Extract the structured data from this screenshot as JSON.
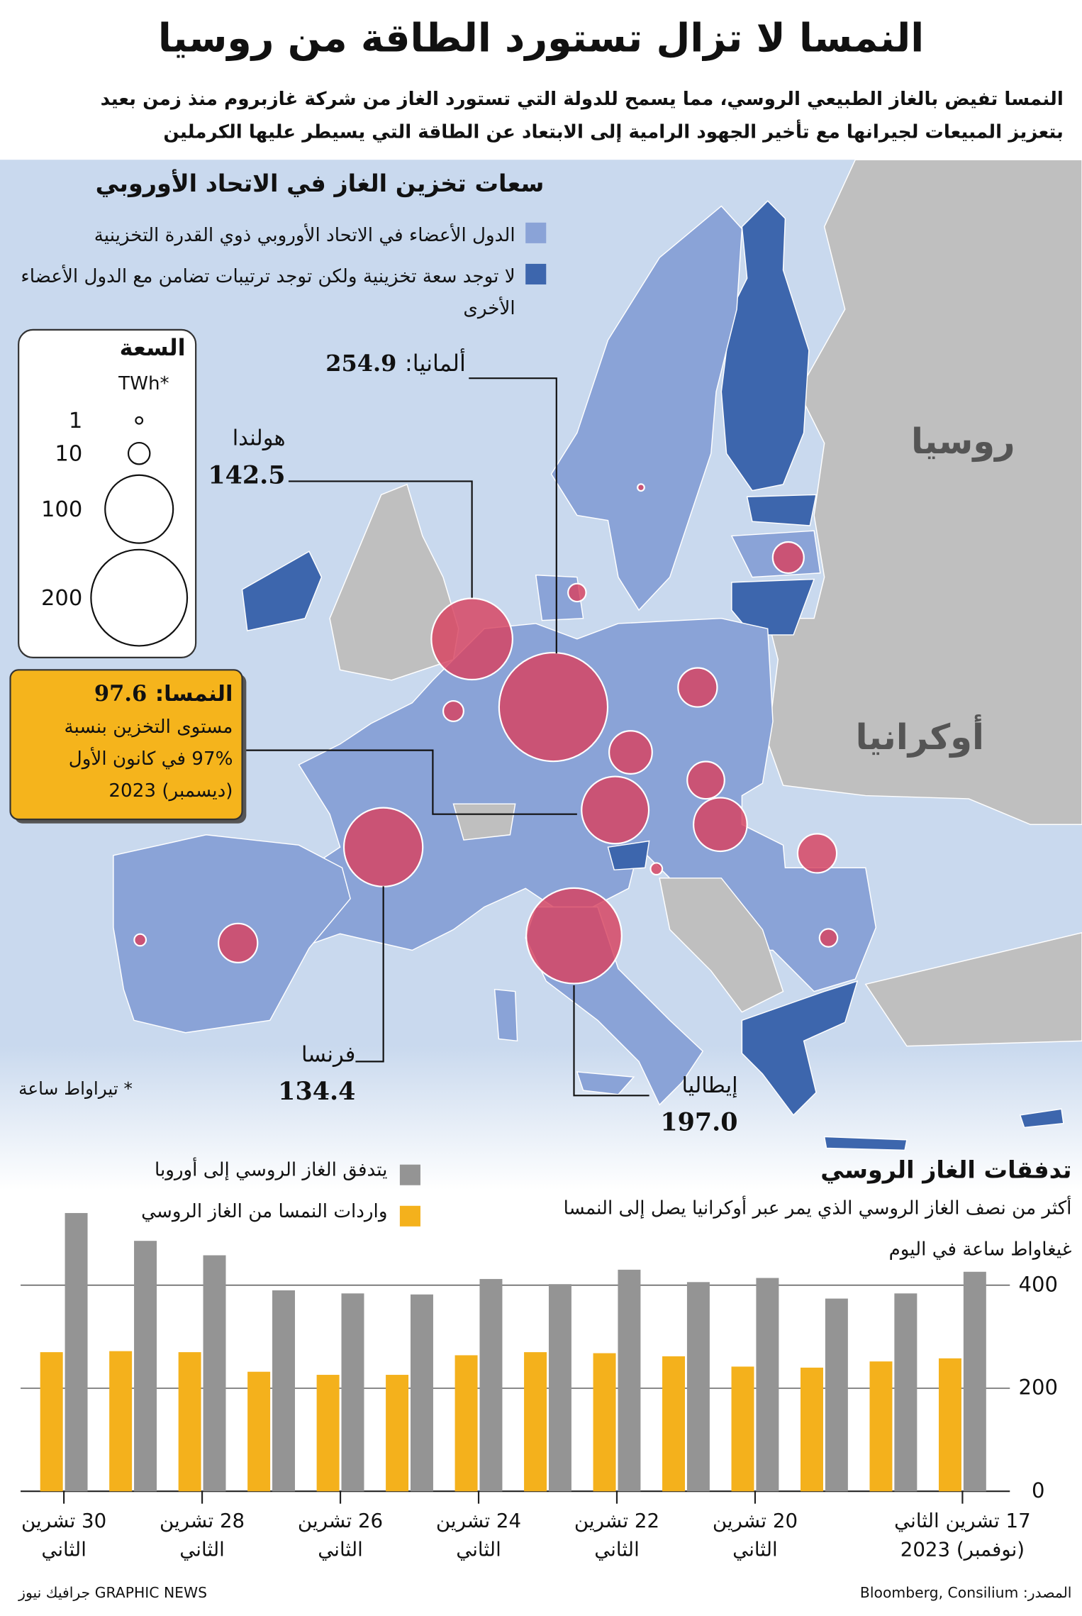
{
  "header": {
    "title": "النمسا لا تزال تستورد الطاقة من روسيا",
    "subtitle": [
      "النمسا تفيض بالغاز الطبيعي الروسي، مما يسمح للدولة التي تستورد الغاز من شركة غازبروم منذ زمن بعيد",
      "بتعزيز المبيعات لجيرانها مع تأخير الجهود الرامية إلى الابتعاد عن الطاقة التي يسيطر عليها الكرملين"
    ]
  },
  "chart_data": [
    {
      "type": "bubble_map",
      "title": "سعات تخزين الغاز في الاتحاد الأوروبي",
      "legend": [
        {
          "label": "الدول الأعضاء في الاتحاد الأوروبي ذوي القدرة التخزينية",
          "color": "#8aa3d7"
        },
        {
          "label": "لا توجد سعة تخزينية ولكن توجد ترتيبات تضامن مع الدول الأعضاء الأخرى",
          "color": "#3d66ad"
        }
      ],
      "size_legend": {
        "title": "السعة",
        "unit": "TWh*",
        "values": [
          1,
          10,
          100,
          200
        ]
      },
      "color": "#d8425f",
      "bubbles": [
        {
          "label": "ألمانيا:",
          "value": 254.9
        },
        {
          "label": "هولندا",
          "value": 142.5
        },
        {
          "label": "النمسا:",
          "value": 97.6,
          "note": [
            "مستوى التخزين بنسبة",
            "97% في كانون الأول",
            "(ديسمبر) 2023"
          ]
        },
        {
          "label": "فرنسا",
          "value": 134.4
        },
        {
          "label": "إيطاليا",
          "value": 197.0,
          "value_label": "197.0"
        },
        {
          "value": 33
        },
        {
          "value": 40
        },
        {
          "value": 30
        },
        {
          "value": 62
        },
        {
          "value": 33
        },
        {
          "value": 7
        },
        {
          "value": 21
        },
        {
          "value": 9
        },
        {
          "value": 3
        },
        {
          "value": 33
        },
        {
          "value": 7
        },
        {
          "value": 3
        },
        {
          "value": 1
        }
      ],
      "region_labels": [
        "روسيا",
        "أوكرانيا"
      ],
      "footnote": "* تيراواط ساعة"
    },
    {
      "type": "bar",
      "title": "تدفقات الغاز الروسي",
      "subtitle": "أكثر من نصف الغاز الروسي الذي يمر عبر أوكرانيا يصل إلى النمسا",
      "unit": "غيغاواط ساعة في اليوم",
      "categories": [
        "17 تشرين الثاني (نوفمبر) 2023",
        null,
        null,
        "20 تشرين الثاني",
        null,
        "22 تشرين الثاني",
        null,
        "24 تشرين الثاني",
        null,
        "26 تشرين الثاني",
        null,
        "28 تشرين الثاني",
        null,
        "30 تشرين الثاني"
      ],
      "series": [
        {
          "name": "يتدفق الغاز الروسي إلى أوروبا",
          "color": "#949494",
          "values": [
            426,
            384,
            374,
            414,
            406,
            430,
            402,
            412,
            382,
            384,
            390,
            458,
            486,
            540
          ]
        },
        {
          "name": "واردات النمسا من الغاز الروسي",
          "color": "#f4b11c",
          "values": [
            258,
            252,
            240,
            242,
            262,
            268,
            270,
            264,
            226,
            226,
            232,
            270,
            272,
            270
          ]
        }
      ],
      "ylim": [
        0,
        560
      ],
      "yticks": [
        0,
        200,
        400
      ],
      "grid": true
    }
  ],
  "footer": {
    "source": "المصدر: Bloomberg, Consilium",
    "credit": "GRAPHIC NEWS جرافيك نيوز"
  }
}
